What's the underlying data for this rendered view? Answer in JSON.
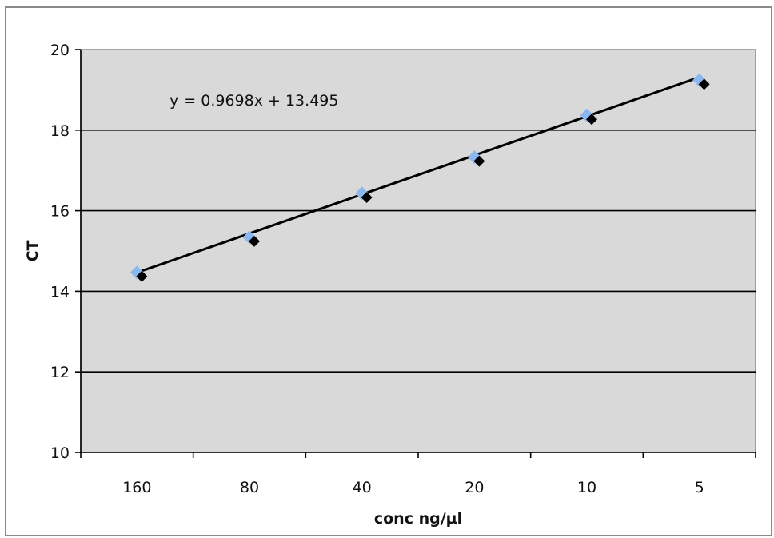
{
  "chart_data": {
    "type": "scatter",
    "categories": [
      "160",
      "80",
      "40",
      "20",
      "10",
      "5"
    ],
    "x": [
      1,
      2,
      3,
      4,
      5,
      6
    ],
    "series": [
      {
        "values": [
          14.47,
          15.34,
          16.43,
          17.33,
          18.37,
          19.24
        ],
        "color": "#8ab8ee",
        "marker": "diamond"
      },
      {
        "values": [
          14.37,
          15.24,
          16.33,
          17.23,
          18.27,
          19.14
        ],
        "color": "#000000",
        "marker": "diamond"
      }
    ],
    "trendline": {
      "slope": 0.9698,
      "intercept": 13.495,
      "color": "#000000"
    },
    "equation": "y = 0.9698x + 13.495",
    "xlabel": "conc ng/µl",
    "ylabel": "CT",
    "ylim": [
      10,
      20
    ],
    "yticks": [
      "10",
      "12",
      "14",
      "16",
      "18",
      "20"
    ],
    "grid": true,
    "plot_background": "#d9d9d9",
    "legend": "none"
  }
}
